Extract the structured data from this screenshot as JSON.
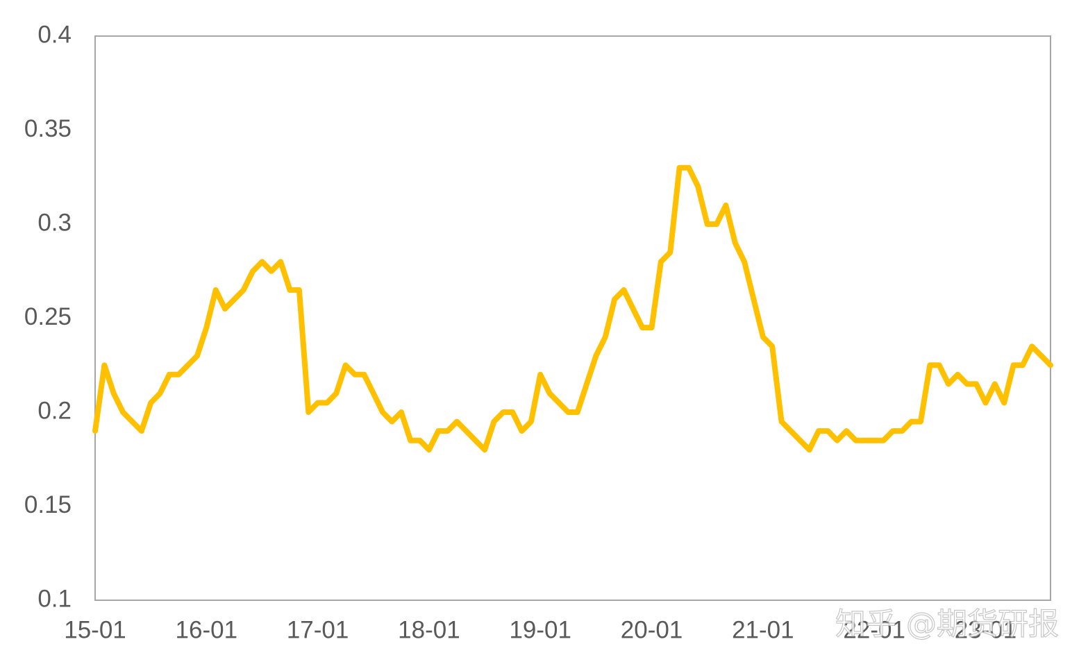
{
  "chart_data": {
    "type": "line",
    "x": [
      "15-01",
      "15-02",
      "15-03",
      "15-04",
      "15-05",
      "15-06",
      "15-07",
      "15-08",
      "15-09",
      "15-10",
      "15-11",
      "15-12",
      "16-01",
      "16-02",
      "16-03",
      "16-04",
      "16-05",
      "16-06",
      "16-07",
      "16-08",
      "16-09",
      "16-10",
      "16-11",
      "16-12",
      "17-01",
      "17-02",
      "17-03",
      "17-04",
      "17-05",
      "17-06",
      "17-07",
      "17-08",
      "17-09",
      "17-10",
      "17-11",
      "17-12",
      "18-01",
      "18-02",
      "18-03",
      "18-04",
      "18-05",
      "18-06",
      "18-07",
      "18-08",
      "18-09",
      "18-10",
      "18-11",
      "18-12",
      "19-01",
      "19-02",
      "19-03",
      "19-04",
      "19-05",
      "19-06",
      "19-07",
      "19-08",
      "19-09",
      "19-10",
      "19-11",
      "19-12",
      "20-01",
      "20-02",
      "20-03",
      "20-04",
      "20-05",
      "20-06",
      "20-07",
      "20-08",
      "20-09",
      "20-10",
      "20-11",
      "20-12",
      "21-01",
      "21-02",
      "21-03",
      "21-04",
      "21-05",
      "21-06",
      "21-07",
      "21-08",
      "21-09",
      "21-10",
      "21-11",
      "21-12",
      "22-01",
      "22-02",
      "22-03",
      "22-04",
      "22-05",
      "22-06",
      "22-07",
      "22-08",
      "22-09",
      "22-10",
      "22-11",
      "22-12",
      "23-01",
      "23-02",
      "23-03",
      "23-04",
      "23-05",
      "23-06",
      "23-07",
      "23-08"
    ],
    "values": [
      0.19,
      0.225,
      0.21,
      0.2,
      0.195,
      0.19,
      0.205,
      0.21,
      0.22,
      0.22,
      0.225,
      0.23,
      0.245,
      0.265,
      0.255,
      0.26,
      0.265,
      0.275,
      0.28,
      0.275,
      0.28,
      0.265,
      0.265,
      0.2,
      0.205,
      0.205,
      0.21,
      0.225,
      0.22,
      0.22,
      0.21,
      0.2,
      0.195,
      0.2,
      0.185,
      0.185,
      0.18,
      0.19,
      0.19,
      0.195,
      0.19,
      0.185,
      0.18,
      0.195,
      0.2,
      0.2,
      0.19,
      0.195,
      0.22,
      0.21,
      0.205,
      0.2,
      0.2,
      0.215,
      0.23,
      0.24,
      0.26,
      0.265,
      0.255,
      0.245,
      0.245,
      0.28,
      0.285,
      0.33,
      0.33,
      0.32,
      0.3,
      0.3,
      0.31,
      0.29,
      0.28,
      0.26,
      0.24,
      0.235,
      0.195,
      0.19,
      0.185,
      0.18,
      0.19,
      0.19,
      0.185,
      0.19,
      0.185,
      0.185,
      0.185,
      0.185,
      0.19,
      0.19,
      0.195,
      0.195,
      0.225,
      0.225,
      0.215,
      0.22,
      0.215,
      0.215,
      0.205,
      0.215,
      0.205,
      0.225,
      0.225,
      0.235,
      0.23,
      0.225
    ],
    "color": "#ffc000",
    "ylim": [
      0.1,
      0.4
    ],
    "yticks": [
      0.1,
      0.15,
      0.2,
      0.25,
      0.3,
      0.35,
      0.4
    ],
    "grid": false
  },
  "watermark": "知乎 @期货研报"
}
